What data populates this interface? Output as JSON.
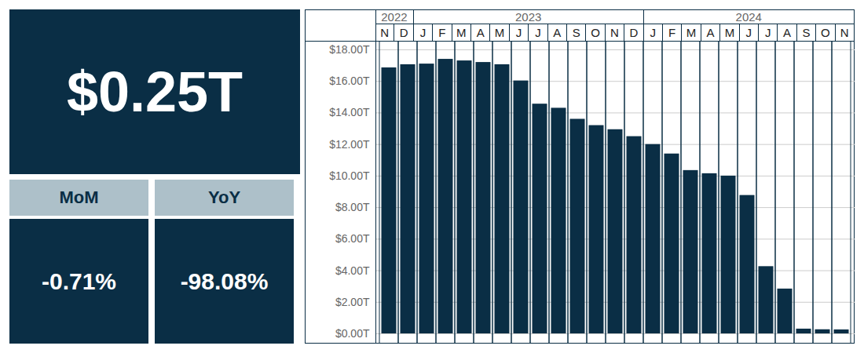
{
  "chart_data": {
    "type": "bar",
    "categories": [
      "N",
      "D",
      "J",
      "F",
      "M",
      "A",
      "M",
      "J",
      "J",
      "A",
      "S",
      "O",
      "N",
      "D",
      "J",
      "F",
      "M",
      "A",
      "M",
      "J",
      "J",
      "A",
      "S",
      "O",
      "N"
    ],
    "groups": [
      "2022",
      "2022",
      "2023",
      "2023",
      "2023",
      "2023",
      "2023",
      "2023",
      "2023",
      "2023",
      "2023",
      "2023",
      "2023",
      "2023",
      "2024",
      "2024",
      "2024",
      "2024",
      "2024",
      "2024",
      "2024",
      "2024",
      "2024",
      "2024",
      "2024"
    ],
    "values": [
      16.86,
      17.06,
      17.1,
      17.4,
      17.3,
      17.2,
      17.06,
      16.03,
      14.56,
      14.3,
      13.6,
      13.2,
      12.94,
      12.5,
      12.0,
      11.4,
      10.35,
      10.15,
      10.0,
      8.77,
      4.26,
      2.84,
      0.3,
      0.26,
      0.25
    ],
    "color": "#0a2e45",
    "ylim": [
      0,
      18
    ],
    "yticks": [
      {
        "value": 0,
        "label": "$0.00T"
      },
      {
        "value": 2,
        "label": "$2.00T"
      },
      {
        "value": 4,
        "label": "$4.00T"
      },
      {
        "value": 6,
        "label": "$6.00T"
      },
      {
        "value": 8,
        "label": "$8.00T"
      },
      {
        "value": 10,
        "label": "$10.00T"
      },
      {
        "value": 12,
        "label": "$12.00T"
      },
      {
        "value": 14,
        "label": "$14.00T"
      },
      {
        "value": 16,
        "label": "$16.00T"
      },
      {
        "value": 18,
        "label": "$18.00T"
      }
    ],
    "grid": true
  },
  "kpi": {
    "value": "$0.25T",
    "cards": [
      {
        "label": "MoM",
        "value": "-0.71%"
      },
      {
        "label": "YoY",
        "value": "-98.08%"
      }
    ]
  }
}
